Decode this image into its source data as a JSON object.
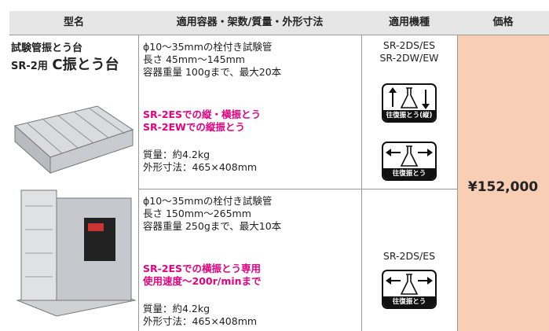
{
  "table": {
    "headers": [
      "型名",
      "適用容器・架数/質量・外形寸法",
      "適用機種",
      "価格"
    ],
    "product": {
      "name_line1": "試験管振とう台",
      "name_prefix": "SR-2用",
      "name_main": "C振とう台"
    },
    "rows": [
      {
        "specs": [
          "ϕ10～35mmの栓付き試験管",
          "長さ 45mm～145mm",
          "容器重量 100gまで、最大20本"
        ],
        "highlights": [
          "SR-2ESでの縦・横振とう",
          "SR-2EWでの縦振とう"
        ],
        "details": [
          "質量：約4.2kg",
          "外形寸法：465×408mm"
        ],
        "models": [
          "SR-2DS/ES",
          "SR-2DW/EW"
        ],
        "icons": [
          "往復振とう(縦)",
          "往復振とう"
        ]
      },
      {
        "specs": [
          "ϕ10～35mmの栓付き試験管",
          "長さ 150mm～265mm",
          "容器重量 250gまで、最大10本"
        ],
        "highlights": [
          "SR-2ESでの横振とう専用",
          "使用速度～200r/minまで"
        ],
        "details": [
          "質量：約4.2kg",
          "外形寸法：465×408mm"
        ],
        "models": [
          "SR-2DS/ES"
        ],
        "icons": [
          "往復振とう"
        ]
      }
    ],
    "price": "¥152,000"
  }
}
